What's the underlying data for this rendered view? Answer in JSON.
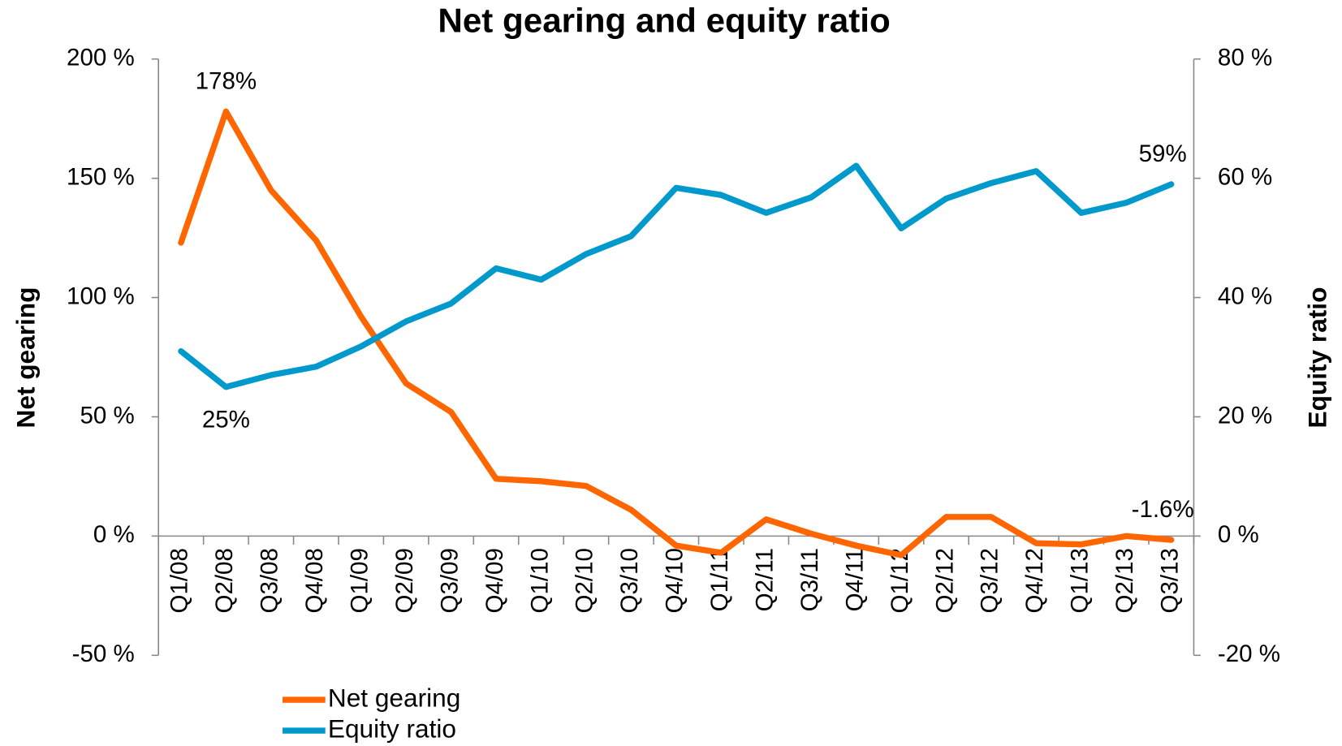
{
  "chart_data": {
    "type": "line",
    "title": "Net gearing and equity ratio",
    "y_label": "Net gearing",
    "y2_label": "Equity ratio",
    "categories": [
      "Q1/08",
      "Q2/08",
      "Q3/08",
      "Q4/08",
      "Q1/09",
      "Q2/09",
      "Q3/09",
      "Q4/09",
      "Q1/10",
      "Q2/10",
      "Q3/10",
      "Q4/10",
      "Q1/11",
      "Q2/11",
      "Q3/11",
      "Q4/11",
      "Q1/12",
      "Q2/12",
      "Q3/12",
      "Q4/12",
      "Q1/13",
      "Q2/13",
      "Q3/13"
    ],
    "series": [
      {
        "name": "Net gearing",
        "color": "#ff6600",
        "axis": "y",
        "values": [
          123,
          178,
          145,
          124,
          92,
          64,
          52,
          24,
          23,
          21,
          11,
          -4,
          -7,
          7,
          1,
          -4,
          -8,
          8,
          8,
          -3,
          -3.5,
          0,
          -1.6
        ],
        "value_labels": [
          null,
          "178%",
          null,
          null,
          null,
          null,
          null,
          null,
          null,
          null,
          null,
          null,
          null,
          null,
          null,
          null,
          null,
          null,
          null,
          null,
          null,
          null,
          "-1.6%"
        ]
      },
      {
        "name": "Equity ratio",
        "color": "#0099cc",
        "axis": "y2",
        "values": [
          31,
          25,
          27,
          28.4,
          31.8,
          36,
          39,
          44.9,
          43,
          47.3,
          50.3,
          58.4,
          57.2,
          54.2,
          56.8,
          62.1,
          51.6,
          56.6,
          59.2,
          61.2,
          54.2,
          55.9,
          59
        ],
        "value_labels": [
          null,
          "25%",
          null,
          null,
          null,
          null,
          null,
          null,
          null,
          null,
          null,
          null,
          null,
          null,
          null,
          null,
          null,
          null,
          null,
          null,
          null,
          null,
          "59%"
        ]
      }
    ],
    "ylim": [
      -50,
      200
    ],
    "yticks": [
      {
        "value": -50,
        "label": "-50 %"
      },
      {
        "value": 0,
        "label": "0 %"
      },
      {
        "value": 50,
        "label": "50 %"
      },
      {
        "value": 100,
        "label": "100 %"
      },
      {
        "value": 150,
        "label": "150 %"
      },
      {
        "value": 200,
        "label": "200 %"
      }
    ],
    "y2lim": [
      -20,
      80
    ],
    "y2ticks": [
      {
        "value": -20,
        "label": "-20 %"
      },
      {
        "value": 0,
        "label": "0 %"
      },
      {
        "value": 20,
        "label": "20 %"
      },
      {
        "value": 40,
        "label": "40 %"
      },
      {
        "value": 60,
        "label": "60 %"
      },
      {
        "value": 80,
        "label": "80 %"
      }
    ],
    "grid": false,
    "legend": "bottom-left"
  }
}
